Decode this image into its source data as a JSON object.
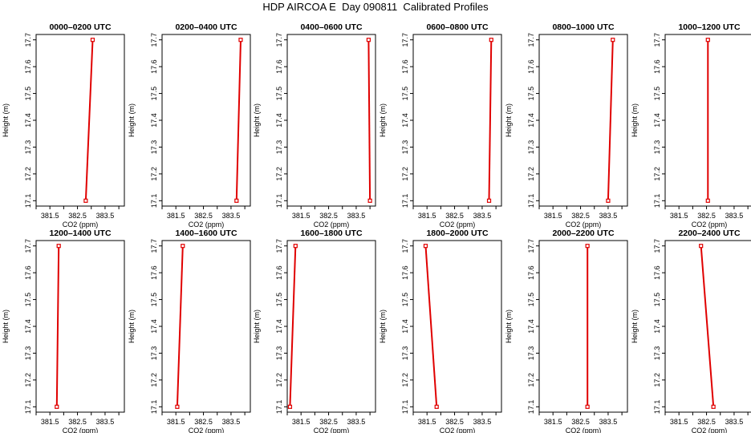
{
  "figure": {
    "title": "HDP AIRCOA E  Day 090811  Calibrated Profiles",
    "line_color": "#e00000",
    "point_color": "#e00000",
    "axis_color": "#000000"
  },
  "chart_data": [
    {
      "type": "line",
      "title": "0000–0200 UTC",
      "xlabel": "CO2 (ppm)",
      "ylabel": "Height (m)",
      "xlim": [
        381.0,
        384.2
      ],
      "ylim": [
        17.08,
        17.72
      ],
      "x_ticks": [
        "381.5",
        "382.5",
        "383.5"
      ],
      "x_tick_values": [
        381.5,
        382.5,
        383.5
      ],
      "y_ticks": [
        "17.1",
        "17.2",
        "17.3",
        "17.4",
        "17.5",
        "17.6",
        "17.7"
      ],
      "y_tick_values": [
        17.1,
        17.2,
        17.3,
        17.4,
        17.5,
        17.6,
        17.7
      ],
      "series": [
        {
          "x": [
            382.8,
            383.05
          ],
          "y": [
            17.1,
            17.7
          ]
        }
      ]
    },
    {
      "type": "line",
      "title": "0200–0400 UTC",
      "xlabel": "CO2 (ppm)",
      "ylabel": "Height (m)",
      "xlim": [
        381.0,
        384.2
      ],
      "ylim": [
        17.08,
        17.72
      ],
      "x_ticks": [
        "381.5",
        "382.5",
        "383.5"
      ],
      "x_tick_values": [
        381.5,
        382.5,
        383.5
      ],
      "y_ticks": [
        "17.1",
        "17.2",
        "17.3",
        "17.4",
        "17.5",
        "17.6",
        "17.7"
      ],
      "y_tick_values": [
        17.1,
        17.2,
        17.3,
        17.4,
        17.5,
        17.6,
        17.7
      ],
      "series": [
        {
          "x": [
            383.7,
            383.85
          ],
          "y": [
            17.1,
            17.7
          ]
        }
      ]
    },
    {
      "type": "line",
      "title": "0400–0600 UTC",
      "xlabel": "CO2 (ppm)",
      "ylabel": "Height (m)",
      "xlim": [
        381.0,
        384.2
      ],
      "ylim": [
        17.08,
        17.72
      ],
      "x_ticks": [
        "381.5",
        "382.5",
        "383.5"
      ],
      "x_tick_values": [
        381.5,
        382.5,
        383.5
      ],
      "y_ticks": [
        "17.1",
        "17.2",
        "17.3",
        "17.4",
        "17.5",
        "17.6",
        "17.7"
      ],
      "y_tick_values": [
        17.1,
        17.2,
        17.3,
        17.4,
        17.5,
        17.6,
        17.7
      ],
      "series": [
        {
          "x": [
            384.0,
            383.95
          ],
          "y": [
            17.1,
            17.7
          ]
        }
      ]
    },
    {
      "type": "line",
      "title": "0600–0800 UTC",
      "xlabel": "CO2 (ppm)",
      "ylabel": "Height (m)",
      "xlim": [
        381.0,
        384.2
      ],
      "ylim": [
        17.08,
        17.72
      ],
      "x_ticks": [
        "381.5",
        "382.5",
        "383.5"
      ],
      "x_tick_values": [
        381.5,
        382.5,
        383.5
      ],
      "y_ticks": [
        "17.1",
        "17.2",
        "17.3",
        "17.4",
        "17.5",
        "17.6",
        "17.7"
      ],
      "y_tick_values": [
        17.1,
        17.2,
        17.3,
        17.4,
        17.5,
        17.6,
        17.7
      ],
      "series": [
        {
          "x": [
            383.75,
            383.83
          ],
          "y": [
            17.1,
            17.7
          ]
        }
      ]
    },
    {
      "type": "line",
      "title": "0800–1000 UTC",
      "xlabel": "CO2 (ppm)",
      "ylabel": "Height (m)",
      "xlim": [
        381.0,
        384.2
      ],
      "ylim": [
        17.08,
        17.72
      ],
      "x_ticks": [
        "381.5",
        "382.5",
        "383.5"
      ],
      "x_tick_values": [
        381.5,
        382.5,
        383.5
      ],
      "y_ticks": [
        "17.1",
        "17.2",
        "17.3",
        "17.4",
        "17.5",
        "17.6",
        "17.7"
      ],
      "y_tick_values": [
        17.1,
        17.2,
        17.3,
        17.4,
        17.5,
        17.6,
        17.7
      ],
      "series": [
        {
          "x": [
            383.5,
            383.67
          ],
          "y": [
            17.1,
            17.7
          ]
        }
      ]
    },
    {
      "type": "line",
      "title": "1000–1200 UTC",
      "xlabel": "CO2 (ppm)",
      "ylabel": "Height (m)",
      "xlim": [
        381.0,
        384.2
      ],
      "ylim": [
        17.08,
        17.72
      ],
      "x_ticks": [
        "381.5",
        "382.5",
        "383.5"
      ],
      "x_tick_values": [
        381.5,
        382.5,
        383.5
      ],
      "y_ticks": [
        "17.1",
        "17.2",
        "17.3",
        "17.4",
        "17.5",
        "17.6",
        "17.7"
      ],
      "y_tick_values": [
        17.1,
        17.2,
        17.3,
        17.4,
        17.5,
        17.6,
        17.7
      ],
      "series": [
        {
          "x": [
            382.55,
            382.55
          ],
          "y": [
            17.1,
            17.7
          ]
        }
      ]
    },
    {
      "type": "line",
      "title": "1200–1400 UTC",
      "xlabel": "CO2 (ppm)",
      "ylabel": "Height (m)",
      "xlim": [
        381.0,
        384.2
      ],
      "ylim": [
        17.08,
        17.72
      ],
      "x_ticks": [
        "381.5",
        "382.5",
        "383.5"
      ],
      "x_tick_values": [
        381.5,
        382.5,
        383.5
      ],
      "y_ticks": [
        "17.1",
        "17.2",
        "17.3",
        "17.4",
        "17.5",
        "17.6",
        "17.7"
      ],
      "y_tick_values": [
        17.1,
        17.2,
        17.3,
        17.4,
        17.5,
        17.6,
        17.7
      ],
      "series": [
        {
          "x": [
            381.75,
            381.82
          ],
          "y": [
            17.1,
            17.7
          ]
        }
      ]
    },
    {
      "type": "line",
      "title": "1400–1600 UTC",
      "xlabel": "CO2 (ppm)",
      "ylabel": "Height (m)",
      "xlim": [
        381.0,
        384.2
      ],
      "ylim": [
        17.08,
        17.72
      ],
      "x_ticks": [
        "381.5",
        "382.5",
        "383.5"
      ],
      "x_tick_values": [
        381.5,
        382.5,
        383.5
      ],
      "y_ticks": [
        "17.1",
        "17.2",
        "17.3",
        "17.4",
        "17.5",
        "17.6",
        "17.7"
      ],
      "y_tick_values": [
        17.1,
        17.2,
        17.3,
        17.4,
        17.5,
        17.6,
        17.7
      ],
      "series": [
        {
          "x": [
            381.55,
            381.75
          ],
          "y": [
            17.1,
            17.7
          ]
        }
      ]
    },
    {
      "type": "line",
      "title": "1600–1800 UTC",
      "xlabel": "CO2 (ppm)",
      "ylabel": "Height (m)",
      "xlim": [
        381.0,
        384.2
      ],
      "ylim": [
        17.08,
        17.72
      ],
      "x_ticks": [
        "381.5",
        "382.5",
        "383.5"
      ],
      "x_tick_values": [
        381.5,
        382.5,
        383.5
      ],
      "y_ticks": [
        "17.1",
        "17.2",
        "17.3",
        "17.4",
        "17.5",
        "17.6",
        "17.7"
      ],
      "y_tick_values": [
        17.1,
        17.2,
        17.3,
        17.4,
        17.5,
        17.6,
        17.7
      ],
      "series": [
        {
          "x": [
            381.1,
            381.3
          ],
          "y": [
            17.1,
            17.7
          ]
        }
      ]
    },
    {
      "type": "line",
      "title": "1800–2000 UTC",
      "xlabel": "CO2 (ppm)",
      "ylabel": "Height (m)",
      "xlim": [
        381.0,
        384.2
      ],
      "ylim": [
        17.08,
        17.72
      ],
      "x_ticks": [
        "381.5",
        "382.5",
        "383.5"
      ],
      "x_tick_values": [
        381.5,
        382.5,
        383.5
      ],
      "y_ticks": [
        "17.1",
        "17.2",
        "17.3",
        "17.4",
        "17.5",
        "17.6",
        "17.7"
      ],
      "y_tick_values": [
        17.1,
        17.2,
        17.3,
        17.4,
        17.5,
        17.6,
        17.7
      ],
      "series": [
        {
          "x": [
            381.85,
            381.45
          ],
          "y": [
            17.1,
            17.7
          ]
        }
      ]
    },
    {
      "type": "line",
      "title": "2000–2200 UTC",
      "xlabel": "CO2 (ppm)",
      "ylabel": "Height (m)",
      "xlim": [
        381.0,
        384.2
      ],
      "ylim": [
        17.08,
        17.72
      ],
      "x_ticks": [
        "381.5",
        "382.5",
        "383.5"
      ],
      "x_tick_values": [
        381.5,
        382.5,
        383.5
      ],
      "y_ticks": [
        "17.1",
        "17.2",
        "17.3",
        "17.4",
        "17.5",
        "17.6",
        "17.7"
      ],
      "y_tick_values": [
        17.1,
        17.2,
        17.3,
        17.4,
        17.5,
        17.6,
        17.7
      ],
      "series": [
        {
          "x": [
            382.75,
            382.75
          ],
          "y": [
            17.1,
            17.7
          ]
        }
      ]
    },
    {
      "type": "line",
      "title": "2200–2400 UTC",
      "xlabel": "CO2 (ppm)",
      "ylabel": "Height (m)",
      "xlim": [
        381.0,
        384.2
      ],
      "ylim": [
        17.08,
        17.72
      ],
      "x_ticks": [
        "381.5",
        "382.5",
        "383.5"
      ],
      "x_tick_values": [
        381.5,
        382.5,
        383.5
      ],
      "y_ticks": [
        "17.1",
        "17.2",
        "17.3",
        "17.4",
        "17.5",
        "17.6",
        "17.7"
      ],
      "y_tick_values": [
        17.1,
        17.2,
        17.3,
        17.4,
        17.5,
        17.6,
        17.7
      ],
      "series": [
        {
          "x": [
            382.75,
            382.3
          ],
          "y": [
            17.1,
            17.7
          ]
        }
      ]
    }
  ]
}
